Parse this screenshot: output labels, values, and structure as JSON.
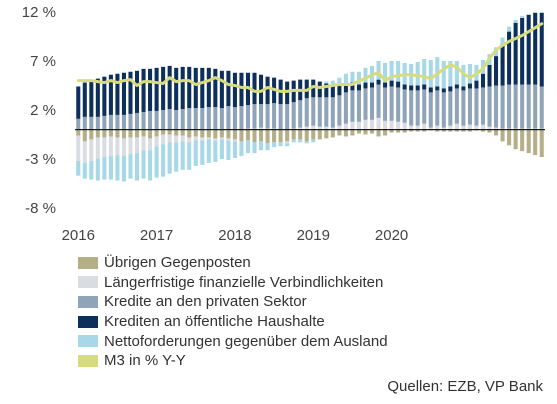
{
  "chart_data": {
    "type": "bar",
    "stacked": true,
    "title": "",
    "xlabel": "",
    "ylabel": "",
    "ylim": [
      -8,
      12
    ],
    "y_ticks": [
      12,
      7,
      2,
      -3,
      -8
    ],
    "y_tick_labels": [
      "12 %",
      "7 %",
      "2 %",
      "-3 %",
      "-8 %"
    ],
    "x_tick_labels": [
      "2016",
      "2017",
      "2018",
      "2019",
      "2020"
    ],
    "x_start": "2016-01",
    "x_frequency": "monthly",
    "grid": false,
    "legend_position": "bottom",
    "series": [
      {
        "name": "Übrigen Gegenposten",
        "type": "bar",
        "color": "#b5ae86",
        "values": [
          -0.6,
          -1.2,
          -1.0,
          -0.8,
          -0.8,
          -0.7,
          -0.8,
          -0.9,
          -0.8,
          -0.8,
          -0.7,
          -0.9,
          -0.7,
          -0.5,
          -0.5,
          -0.6,
          -0.6,
          -0.8,
          -0.7,
          -0.8,
          -0.8,
          -0.9,
          -0.8,
          -0.9,
          -1.0,
          -1.2,
          -1.1,
          -1.3,
          -1.2,
          -1.4,
          -1.3,
          -1.3,
          -1.2,
          -1.0,
          -1.0,
          -1.2,
          -1.0,
          -1.0,
          -0.9,
          -0.8,
          -0.6,
          -0.7,
          -0.6,
          -0.4,
          -0.5,
          -0.4,
          -0.7,
          -0.6,
          -0.3,
          -0.3,
          -0.3,
          -0.2,
          -0.2,
          -0.2,
          -0.1,
          -0.2,
          -0.2,
          -0.2,
          -0.2,
          -0.2,
          -0.2,
          -0.1,
          -0.2,
          -0.3,
          -0.6,
          -1.2,
          -1.6,
          -2.0,
          -2.2,
          -2.4,
          -2.6,
          -2.8
        ]
      },
      {
        "name": "Längerfristige finanzielle Verbindlichkeiten",
        "type": "bar",
        "color": "#d9dde2",
        "values": [
          -2.6,
          -2.2,
          -2.2,
          -2.2,
          -2.0,
          -2.0,
          -1.8,
          -1.8,
          -1.7,
          -1.6,
          -1.4,
          -1.2,
          -1.0,
          -1.0,
          -0.8,
          -0.7,
          -0.6,
          -0.5,
          -0.4,
          -0.3,
          -0.2,
          -0.2,
          -0.2,
          -0.2,
          -0.2,
          0.0,
          0.1,
          0.1,
          0.2,
          0.1,
          0.1,
          0.0,
          -0.2,
          0.1,
          0.2,
          0.3,
          0.4,
          0.3,
          0.3,
          0.2,
          0.4,
          0.6,
          0.8,
          0.8,
          1.0,
          1.0,
          1.2,
          0.9,
          0.9,
          0.8,
          0.7,
          0.4,
          0.4,
          0.6,
          0.2,
          0.4,
          0.2,
          0.4,
          0.6,
          0.4,
          0.5,
          0.4,
          0.5,
          0.3,
          0.2,
          0.1,
          0.1,
          0.1,
          0.1,
          0.1,
          0.1,
          0.1
        ]
      },
      {
        "name": "Kredite an den privaten Sektor",
        "type": "bar",
        "color": "#8fa4b8",
        "values": [
          1.1,
          1.3,
          1.3,
          1.3,
          1.4,
          1.5,
          1.5,
          1.5,
          1.6,
          1.7,
          1.8,
          1.9,
          1.9,
          2.0,
          2.1,
          2.0,
          2.1,
          2.2,
          2.2,
          2.2,
          2.3,
          2.3,
          2.2,
          2.4,
          2.3,
          2.4,
          2.4,
          2.5,
          2.4,
          2.5,
          2.6,
          2.6,
          2.6,
          2.7,
          2.8,
          2.9,
          2.9,
          3.0,
          3.0,
          3.1,
          3.1,
          3.2,
          3.2,
          3.2,
          3.2,
          3.3,
          3.4,
          3.4,
          3.5,
          3.5,
          3.4,
          3.6,
          3.6,
          3.5,
          3.6,
          3.6,
          3.6,
          3.5,
          3.6,
          3.6,
          3.7,
          3.8,
          3.8,
          4.1,
          4.3,
          4.4,
          4.5,
          4.5,
          4.5,
          4.5,
          4.5,
          4.3
        ]
      },
      {
        "name": "Krediten an öffentliche Haushalte",
        "type": "bar",
        "color": "#0d2f5c",
        "values": [
          3.3,
          3.5,
          3.7,
          3.9,
          4.0,
          4.1,
          4.2,
          4.3,
          4.3,
          4.3,
          4.4,
          4.3,
          4.4,
          4.4,
          4.4,
          4.3,
          4.3,
          4.2,
          4.1,
          4.1,
          4.0,
          3.9,
          3.8,
          3.6,
          3.5,
          3.4,
          3.3,
          3.2,
          3.0,
          2.8,
          2.6,
          2.5,
          2.3,
          2.2,
          2.1,
          1.9,
          1.8,
          1.6,
          1.4,
          1.2,
          1.1,
          0.9,
          0.8,
          0.6,
          0.6,
          0.5,
          0.5,
          0.5,
          0.6,
          0.6,
          0.5,
          0.5,
          0.5,
          0.5,
          0.5,
          0.4,
          0.4,
          0.5,
          0.4,
          0.4,
          0.5,
          0.8,
          1.4,
          2.2,
          3.0,
          4.2,
          5.4,
          6.3,
          6.8,
          7.1,
          7.3,
          7.5
        ]
      },
      {
        "name": "Nettoforderungen gegenüber dem Ausland",
        "type": "bar",
        "color": "#a6d8e8",
        "values": [
          -1.5,
          -1.6,
          -1.9,
          -2.2,
          -2.3,
          -2.4,
          -2.6,
          -2.6,
          -2.5,
          -2.8,
          -2.9,
          -3.1,
          -3.2,
          -3.3,
          -3.2,
          -3.0,
          -2.9,
          -2.8,
          -2.6,
          -2.5,
          -2.4,
          -2.2,
          -2.0,
          -2.0,
          -1.7,
          -1.5,
          -1.3,
          -1.1,
          -0.9,
          -0.7,
          -0.5,
          -0.4,
          -0.3,
          -0.3,
          -0.3,
          -0.2,
          -0.3,
          0.0,
          0.2,
          0.5,
          0.7,
          1.0,
          1.1,
          1.3,
          1.5,
          1.7,
          1.9,
          2.0,
          2.0,
          2.1,
          2.2,
          2.2,
          2.4,
          2.6,
          2.8,
          3.0,
          2.8,
          2.6,
          2.4,
          2.2,
          2.0,
          1.6,
          1.4,
          1.1,
          0.9,
          0.7,
          0.5,
          0.3,
          0.2,
          0.1,
          0.1,
          0.1
        ]
      },
      {
        "name": "M3 in % Y-Y",
        "type": "line",
        "color": "#d6dc7d",
        "values": [
          5.0,
          5.0,
          5.0,
          4.9,
          4.8,
          5.0,
          4.8,
          5.0,
          5.1,
          4.5,
          4.9,
          4.9,
          4.8,
          4.7,
          5.3,
          4.9,
          5.0,
          5.0,
          4.6,
          4.8,
          5.0,
          5.3,
          5.0,
          4.6,
          4.5,
          4.3,
          4.3,
          3.9,
          3.9,
          4.3,
          4.1,
          3.9,
          3.9,
          4.0,
          4.0,
          4.0,
          4.4,
          4.3,
          4.4,
          4.5,
          4.6,
          4.6,
          4.6,
          5.0,
          5.2,
          5.6,
          5.8,
          5.0,
          5.4,
          5.5,
          5.6,
          5.6,
          5.5,
          5.4,
          5.2,
          5.7,
          6.2,
          6.6,
          6.4,
          5.7,
          5.3,
          5.7,
          6.2,
          7.3,
          8.1,
          8.6,
          9.0,
          9.3,
          9.6,
          10.0,
          10.4,
          10.8
        ]
      }
    ]
  },
  "legend": {
    "items": [
      {
        "label": "Übrigen Gegenposten",
        "color": "#b5ae86"
      },
      {
        "label": "Längerfristige finanzielle Verbindlichkeiten",
        "color": "#d9dde2"
      },
      {
        "label": "Kredite an den privaten Sektor",
        "color": "#8fa4b8"
      },
      {
        "label": "Krediten an öffentliche Haushalte",
        "color": "#0d2f5c"
      },
      {
        "label": "Nettoforderungen gegenüber dem Ausland",
        "color": "#a6d8e8"
      },
      {
        "label": "M3 in % Y-Y",
        "color": "#d6dc7d"
      }
    ]
  },
  "source_note": "Quellen: EZB, VP Bank"
}
